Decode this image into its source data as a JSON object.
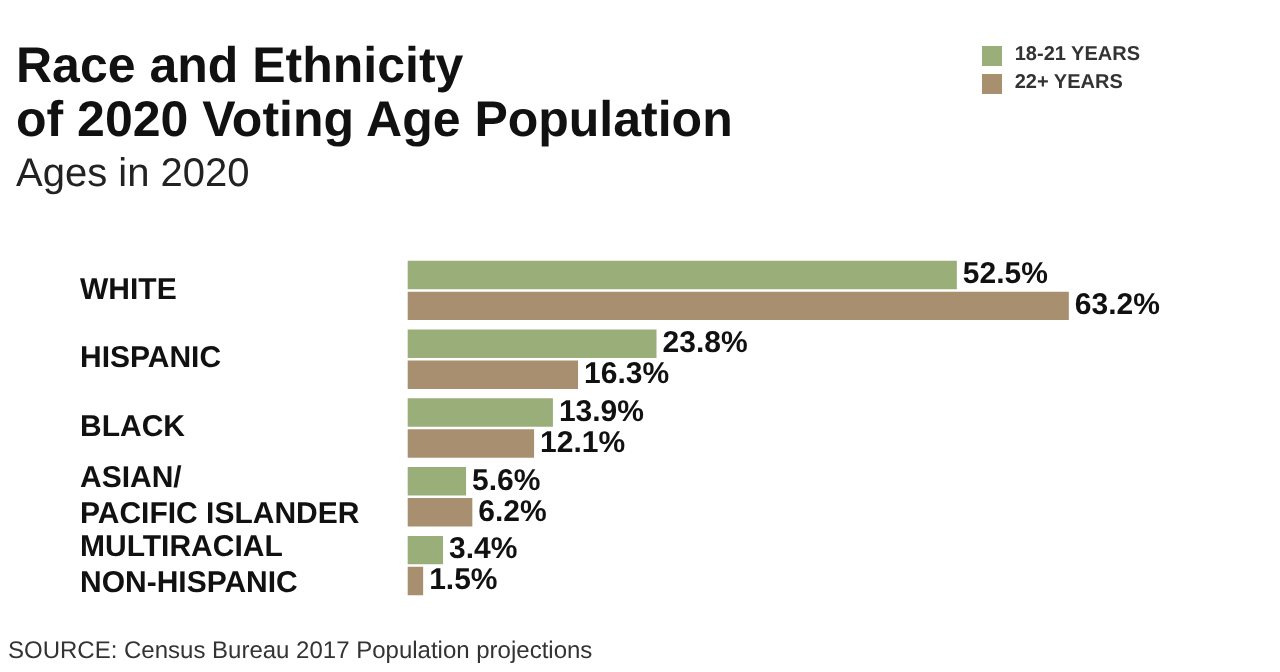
{
  "chart_data": {
    "type": "bar",
    "orientation": "horizontal",
    "title": "Race and Ethnicity\nof 2020 Voting Age Population",
    "subtitle": "Ages in 2020",
    "categories": [
      "WHITE",
      "HISPANIC",
      "BLACK",
      "ASIAN/\nPACIFIC ISLANDER",
      "MULTIRACIAL\nNON-HISPANIC"
    ],
    "series": [
      {
        "name": "18-21 YEARS",
        "color": "#9aae7a",
        "values": [
          52.5,
          23.8,
          13.9,
          5.6,
          3.4
        ],
        "value_labels": [
          "52.5%",
          "23.8%",
          "13.9%",
          "5.6%",
          "3.4%"
        ]
      },
      {
        "name": "22+ YEARS",
        "color": "#a88f6f",
        "values": [
          63.2,
          16.3,
          12.1,
          6.2,
          1.5
        ],
        "value_labels": [
          "63.2%",
          "16.3%",
          "12.1%",
          "6.2%",
          "1.5%"
        ]
      }
    ],
    "legend": "top right",
    "annotations": [
      "SOURCE: Census Bureau 2017 Population projections"
    ]
  }
}
